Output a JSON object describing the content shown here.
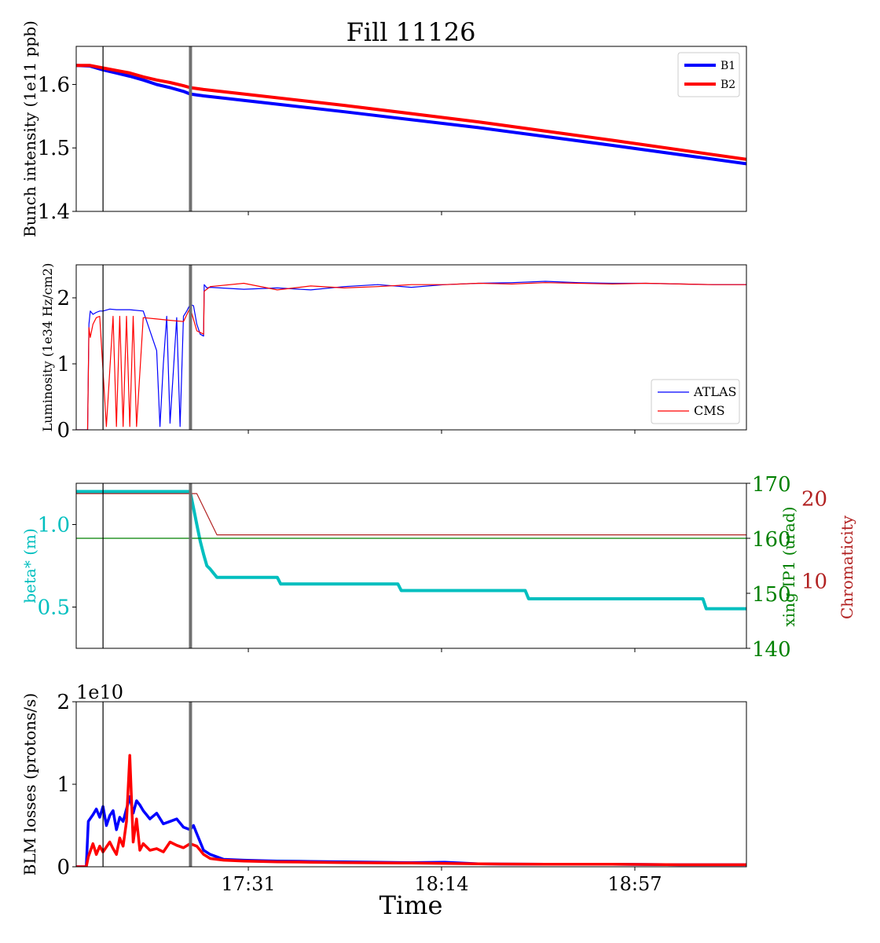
{
  "title": "Fill 11126",
  "xlabel": "Time",
  "x_ticks": [
    "17:31",
    "18:14",
    "18:57"
  ],
  "colors": {
    "b1": "#0000ff",
    "b2": "#ff0000",
    "atlas": "#0000ff",
    "cms": "#ff0000",
    "beta": "#00bfbf",
    "xing": "#008000",
    "chroma": "#b22222",
    "marker_gray": "#707070"
  },
  "chart_data": [
    {
      "type": "line",
      "ylabel": "Bunch intensity (1e11 ppb)",
      "ylim": [
        1.4,
        1.66
      ],
      "y_ticks": [
        "1.4",
        "1.5",
        "1.6"
      ],
      "legend_placement": "top-right",
      "series": [
        {
          "name": "B1",
          "x": [
            0,
            0.02,
            0.04,
            0.06,
            0.08,
            0.1,
            0.12,
            0.14,
            0.16,
            0.17,
            0.19,
            0.25,
            0.4,
            0.6,
            0.8,
            1.0
          ],
          "y": [
            1.63,
            1.629,
            1.623,
            1.618,
            1.613,
            1.607,
            1.6,
            1.595,
            1.589,
            1.585,
            1.582,
            1.575,
            1.557,
            1.532,
            1.504,
            1.475
          ]
        },
        {
          "name": "B2",
          "x": [
            0,
            0.02,
            0.04,
            0.06,
            0.08,
            0.1,
            0.12,
            0.14,
            0.16,
            0.17,
            0.19,
            0.25,
            0.4,
            0.6,
            0.8,
            1.0
          ],
          "y": [
            1.63,
            1.63,
            1.626,
            1.622,
            1.618,
            1.612,
            1.607,
            1.603,
            1.598,
            1.595,
            1.592,
            1.585,
            1.567,
            1.541,
            1.512,
            1.482
          ]
        }
      ]
    },
    {
      "type": "line",
      "ylabel": "Luminosity (1e34 Hz/cm2)",
      "ylim": [
        0,
        2.5
      ],
      "y_ticks": [
        "0",
        "1",
        "2"
      ],
      "legend_placement": "bottom-right",
      "series": [
        {
          "name": "ATLAS",
          "x": [
            0,
            0.017,
            0.019,
            0.021,
            0.025,
            0.03,
            0.035,
            0.04,
            0.05,
            0.06,
            0.08,
            0.1,
            0.12,
            0.125,
            0.13,
            0.135,
            0.14,
            0.145,
            0.15,
            0.155,
            0.16,
            0.165,
            0.17,
            0.175,
            0.18,
            0.185,
            0.19,
            0.191,
            0.195,
            0.2,
            0.25,
            0.3,
            0.35,
            0.4,
            0.45,
            0.5,
            0.55,
            0.6,
            0.65,
            0.7,
            0.75,
            0.8,
            0.85,
            0.9,
            0.95,
            1.0
          ],
          "y": [
            0,
            0,
            1.6,
            1.8,
            1.75,
            1.78,
            1.8,
            1.8,
            1.83,
            1.82,
            1.82,
            1.8,
            1.2,
            0.05,
            1.0,
            1.72,
            0.1,
            0.9,
            1.7,
            0.05,
            1.72,
            1.8,
            1.9,
            1.88,
            1.6,
            1.45,
            1.42,
            2.2,
            2.15,
            2.16,
            2.13,
            2.15,
            2.12,
            2.17,
            2.2,
            2.16,
            2.2,
            2.22,
            2.23,
            2.25,
            2.23,
            2.22,
            2.22,
            2.21,
            2.2,
            2.2
          ]
        },
        {
          "name": "CMS",
          "x": [
            0,
            0.017,
            0.019,
            0.021,
            0.025,
            0.03,
            0.035,
            0.045,
            0.055,
            0.06,
            0.065,
            0.07,
            0.075,
            0.08,
            0.085,
            0.09,
            0.1,
            0.12,
            0.14,
            0.16,
            0.17,
            0.18,
            0.19,
            0.191,
            0.2,
            0.25,
            0.3,
            0.35,
            0.4,
            0.45,
            0.5,
            0.55,
            0.6,
            0.65,
            0.7,
            0.75,
            0.8,
            0.85,
            0.9,
            0.95,
            1.0
          ],
          "y": [
            0,
            0,
            1.55,
            1.4,
            1.6,
            1.7,
            1.72,
            0.05,
            1.72,
            0.05,
            1.72,
            0.05,
            1.72,
            0.05,
            1.72,
            0.05,
            1.7,
            1.68,
            1.66,
            1.64,
            1.85,
            1.5,
            1.45,
            2.1,
            2.17,
            2.22,
            2.12,
            2.18,
            2.15,
            2.17,
            2.2,
            2.2,
            2.22,
            2.21,
            2.23,
            2.22,
            2.21,
            2.22,
            2.21,
            2.2,
            2.2
          ]
        }
      ]
    },
    {
      "type": "line",
      "ylabel": "beta* (m)",
      "ylim": [
        0.25,
        1.25
      ],
      "y_ticks": [
        "0.5",
        "1.0"
      ],
      "y2": {
        "label": "xing IP1 (urad)",
        "ylim": [
          140,
          170
        ],
        "ticks": [
          "140",
          "150",
          "160",
          "170"
        ]
      },
      "y3": {
        "label": "Chromaticity",
        "ylim": [
          1.75,
          21.75
        ],
        "ticks": [
          "10",
          "20"
        ]
      },
      "series": [
        {
          "name": "beta*",
          "axis": "y",
          "x": [
            0,
            0.17,
            0.175,
            0.18,
            0.185,
            0.19,
            0.195,
            0.2,
            0.21,
            0.3,
            0.305,
            0.48,
            0.485,
            0.67,
            0.675,
            0.935,
            0.94,
            1.0
          ],
          "y": [
            1.2,
            1.2,
            1.1,
            1.0,
            0.9,
            0.82,
            0.75,
            0.73,
            0.68,
            0.68,
            0.64,
            0.64,
            0.6,
            0.6,
            0.55,
            0.55,
            0.49,
            0.49
          ]
        },
        {
          "name": "xing IP1",
          "axis": "y2",
          "x": [
            0,
            1.0
          ],
          "y": [
            160,
            160
          ]
        },
        {
          "name": "Chromaticity",
          "axis": "y3",
          "x": [
            0,
            0.18,
            0.195,
            0.21,
            1.0
          ],
          "y": [
            20.5,
            20.5,
            18.0,
            15.5,
            15.5
          ]
        }
      ]
    },
    {
      "type": "line",
      "ylabel": "BLM losses (protons/s)",
      "offset_text": "1e10",
      "ylim": [
        0,
        20000000000.0
      ],
      "y_ticks": [
        "0",
        "1",
        "2"
      ],
      "series": [
        {
          "name": "B1",
          "x": [
            0,
            0.015,
            0.018,
            0.025,
            0.03,
            0.035,
            0.04,
            0.045,
            0.05,
            0.055,
            0.06,
            0.065,
            0.07,
            0.075,
            0.08,
            0.085,
            0.09,
            0.095,
            0.1,
            0.11,
            0.12,
            0.13,
            0.14,
            0.15,
            0.16,
            0.17,
            0.175,
            0.18,
            0.19,
            0.2,
            0.22,
            0.25,
            0.3,
            0.35,
            0.4,
            0.45,
            0.5,
            0.55,
            0.6,
            0.7,
            0.8,
            0.9,
            1.0
          ],
          "y": [
            0,
            0,
            5500000000.0,
            6300000000.0,
            7000000000.0,
            6000000000.0,
            7300000000.0,
            5000000000.0,
            6200000000.0,
            6800000000.0,
            4500000000.0,
            6000000000.0,
            5500000000.0,
            7000000000.0,
            8500000000.0,
            6500000000.0,
            8000000000.0,
            7500000000.0,
            6800000000.0,
            5800000000.0,
            6500000000.0,
            5200000000.0,
            5500000000.0,
            5800000000.0,
            4800000000.0,
            4500000000.0,
            5000000000.0,
            4000000000.0,
            2000000000.0,
            1500000000.0,
            900000000.0,
            800000000.0,
            700000000.0,
            650000000.0,
            600000000.0,
            550000000.0,
            500000000.0,
            550000000.0,
            350000000.0,
            300000000.0,
            300000000.0,
            250000000.0,
            250000000.0
          ]
        },
        {
          "name": "B2",
          "x": [
            0,
            0.015,
            0.018,
            0.025,
            0.03,
            0.035,
            0.04,
            0.05,
            0.055,
            0.06,
            0.065,
            0.07,
            0.075,
            0.08,
            0.085,
            0.09,
            0.095,
            0.1,
            0.11,
            0.12,
            0.13,
            0.14,
            0.15,
            0.16,
            0.17,
            0.18,
            0.19,
            0.2,
            0.22,
            0.25,
            0.3,
            0.35,
            0.4,
            0.5,
            0.6,
            0.7,
            0.8,
            0.9,
            1.0
          ],
          "y": [
            0,
            0,
            1200000000.0,
            2800000000.0,
            1500000000.0,
            2500000000.0,
            1800000000.0,
            3000000000.0,
            2200000000.0,
            1500000000.0,
            3500000000.0,
            2500000000.0,
            5500000000.0,
            13500000000.0,
            3000000000.0,
            5800000000.0,
            2000000000.0,
            2800000000.0,
            2000000000.0,
            2200000000.0,
            1800000000.0,
            3000000000.0,
            2600000000.0,
            2300000000.0,
            2800000000.0,
            2500000000.0,
            1500000000.0,
            1000000000.0,
            800000000.0,
            700000000.0,
            600000000.0,
            550000000.0,
            500000000.0,
            450000000.0,
            350000000.0,
            300000000.0,
            300000000.0,
            250000000.0,
            250000000.0
          ]
        }
      ]
    }
  ]
}
